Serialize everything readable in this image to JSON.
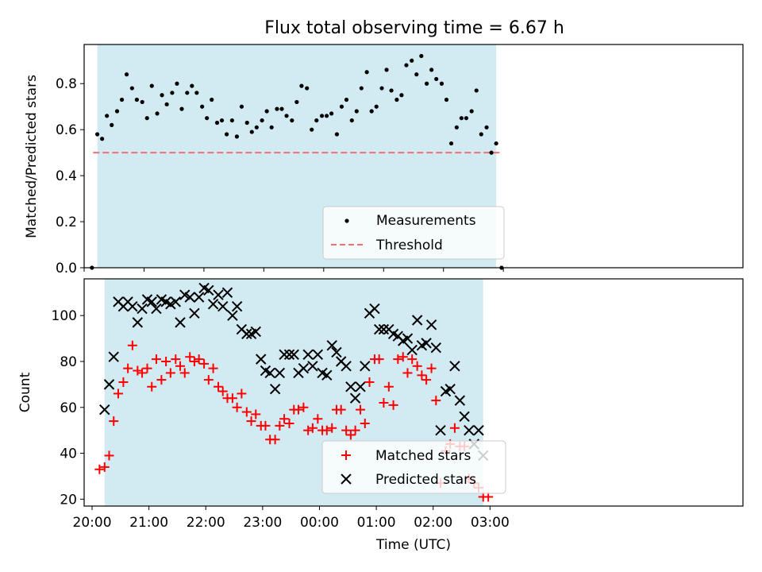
{
  "title": "Flux total observing time = 6.67 h",
  "chart_data": [
    {
      "type": "scatter",
      "ylabel": "Matched/Predicted stars",
      "xlim": [
        20.0,
        31.0
      ],
      "ylim": [
        0,
        0.97
      ],
      "yticks": [
        0,
        0.2,
        0.4,
        0.6,
        0.8
      ],
      "ytick_labels": [
        "0.0",
        "0.2",
        "0.4",
        "0.6",
        "0.8"
      ],
      "shaded_span": [
        20.22,
        26.88
      ],
      "legend_position": "lower center",
      "legend": [
        "Measurements",
        "Threshold"
      ],
      "series": [
        {
          "name": "Measurements",
          "marker": "dot",
          "color": "#000000",
          "x": [
            20.13,
            20.22,
            20.3,
            20.38,
            20.46,
            20.55,
            20.63,
            20.71,
            20.8,
            20.88,
            20.97,
            21.05,
            21.13,
            21.22,
            21.3,
            21.38,
            21.47,
            21.55,
            21.63,
            21.72,
            21.8,
            21.88,
            21.97,
            22.05,
            22.13,
            22.22,
            22.3,
            22.38,
            22.47,
            22.55,
            22.63,
            22.72,
            22.8,
            22.88,
            22.97,
            23.05,
            23.13,
            23.22,
            23.3,
            23.38,
            23.47,
            23.55,
            23.63,
            23.72,
            23.8,
            23.88,
            23.97,
            24.05,
            24.13,
            24.22,
            24.3,
            24.38,
            24.47,
            24.55,
            24.63,
            24.72,
            24.8,
            24.88,
            24.97,
            25.05,
            25.13,
            25.22,
            25.3,
            25.38,
            25.47,
            25.55,
            25.63,
            25.72,
            25.8,
            25.88,
            25.97,
            26.05,
            26.13,
            26.22,
            26.3,
            26.38,
            26.47,
            26.55,
            26.63,
            26.72,
            26.8,
            26.88,
            26.97
          ],
          "y": [
            0.0,
            0.58,
            0.56,
            0.66,
            0.62,
            0.68,
            0.73,
            0.84,
            0.78,
            0.73,
            0.72,
            0.65,
            0.79,
            0.67,
            0.75,
            0.71,
            0.76,
            0.8,
            0.69,
            0.76,
            0.79,
            0.76,
            0.7,
            0.65,
            0.73,
            0.63,
            0.64,
            0.58,
            0.64,
            0.57,
            0.7,
            0.63,
            0.59,
            0.61,
            0.64,
            0.68,
            0.61,
            0.69,
            0.69,
            0.66,
            0.64,
            0.72,
            0.79,
            0.78,
            0.6,
            0.64,
            0.66,
            0.66,
            0.67,
            0.58,
            0.7,
            0.73,
            0.64,
            0.68,
            0.78,
            0.85,
            0.68,
            0.7,
            0.78,
            0.86,
            0.77,
            0.73,
            0.75,
            0.88,
            0.9,
            0.84,
            0.92,
            0.8,
            0.86,
            0.82,
            0.8,
            0.73,
            0.54,
            0.61,
            0.65,
            0.65,
            0.68,
            0.77,
            0.58,
            0.61,
            0.5,
            0.54,
            0.0
          ]
        },
        {
          "name": "Threshold",
          "type": "hline",
          "linestyle": "dashed",
          "color": "#f07070",
          "y": 0.5,
          "x_range": [
            20.15,
            26.95
          ]
        }
      ]
    },
    {
      "type": "scatter",
      "xlabel": "Time (UTC)",
      "ylabel": "Count",
      "xlim": [
        19.86,
        31.45
      ],
      "ylim": [
        17,
        116
      ],
      "xticks": [
        20,
        21,
        22,
        23,
        24,
        25,
        26,
        27
      ],
      "xtick_labels": [
        "20:00",
        "21:00",
        "22:00",
        "23:00",
        "00:00",
        "01:00",
        "02:00",
        "03:00"
      ],
      "yticks": [
        20,
        40,
        60,
        80,
        100
      ],
      "ytick_labels": [
        "20",
        "40",
        "60",
        "80",
        "100"
      ],
      "shaded_span": [
        20.22,
        26.88
      ],
      "legend_position": "lower center",
      "legend": [
        "Matched stars",
        "Predicted stars"
      ],
      "series": [
        {
          "name": "Matched stars",
          "marker": "+",
          "color": "#ff0000",
          "x": [
            20.13,
            20.22,
            20.3,
            20.38,
            20.46,
            20.55,
            20.63,
            20.71,
            20.8,
            20.88,
            20.97,
            21.05,
            21.13,
            21.22,
            21.3,
            21.38,
            21.47,
            21.55,
            21.63,
            21.72,
            21.8,
            21.88,
            21.97,
            22.05,
            22.13,
            22.22,
            22.3,
            22.38,
            22.47,
            22.55,
            22.63,
            22.72,
            22.8,
            22.88,
            22.97,
            23.05,
            23.13,
            23.22,
            23.3,
            23.38,
            23.47,
            23.55,
            23.63,
            23.72,
            23.8,
            23.88,
            23.97,
            24.05,
            24.13,
            24.22,
            24.3,
            24.38,
            24.47,
            24.55,
            24.63,
            24.72,
            24.8,
            24.88,
            24.97,
            25.05,
            25.13,
            25.22,
            25.3,
            25.38,
            25.47,
            25.55,
            25.63,
            25.72,
            25.8,
            25.88,
            25.97,
            26.05,
            26.13,
            26.22,
            26.3,
            26.38,
            26.47,
            26.55,
            26.63,
            26.72,
            26.8,
            26.88,
            26.97
          ],
          "y": [
            33,
            34,
            39,
            54,
            66,
            71,
            77,
            87,
            76,
            75,
            77,
            69,
            81,
            72,
            80,
            75,
            81,
            78,
            75,
            82,
            80,
            81,
            79,
            72,
            77,
            69,
            67,
            64,
            64,
            60,
            66,
            58,
            54,
            57,
            52,
            52,
            46,
            46,
            52,
            55,
            53,
            59,
            59,
            60,
            50,
            51,
            55,
            50,
            50,
            51,
            59,
            59,
            50,
            48,
            50,
            59,
            53,
            71,
            81,
            81,
            62,
            69,
            61,
            81,
            82,
            75,
            81,
            78,
            74,
            72,
            77,
            63,
            27,
            41,
            44,
            51,
            43,
            43,
            29,
            27,
            25,
            21,
            21
          ]
        },
        {
          "name": "Predicted stars",
          "marker": "x",
          "color": "#000000",
          "x": [
            20.22,
            20.3,
            20.38,
            20.46,
            20.55,
            20.63,
            20.71,
            20.8,
            20.88,
            20.97,
            21.05,
            21.13,
            21.22,
            21.3,
            21.38,
            21.47,
            21.55,
            21.63,
            21.72,
            21.8,
            21.88,
            21.97,
            22.05,
            22.13,
            22.22,
            22.3,
            22.38,
            22.47,
            22.55,
            22.63,
            22.72,
            22.8,
            22.88,
            22.97,
            23.05,
            23.13,
            23.22,
            23.3,
            23.38,
            23.47,
            23.55,
            23.63,
            23.72,
            23.8,
            23.88,
            23.97,
            24.05,
            24.13,
            24.22,
            24.3,
            24.38,
            24.47,
            24.55,
            24.63,
            24.72,
            24.8,
            24.88,
            24.97,
            25.05,
            25.13,
            25.22,
            25.3,
            25.38,
            25.47,
            25.55,
            25.63,
            25.72,
            25.8,
            25.88,
            25.97,
            26.05,
            26.13,
            26.22,
            26.3,
            26.38,
            26.47,
            26.55,
            26.63,
            26.72,
            26.8,
            26.88
          ],
          "y": [
            59,
            70,
            82,
            106,
            104,
            106,
            104,
            97,
            103,
            107,
            106,
            103,
            107,
            106,
            105,
            106,
            97,
            109,
            108,
            101,
            108,
            112,
            111,
            105,
            109,
            104,
            110,
            100,
            104,
            94,
            92,
            92,
            93,
            81,
            76,
            75,
            68,
            75,
            83,
            83,
            83,
            75,
            77,
            83,
            78,
            83,
            75,
            74,
            87,
            84,
            80,
            78,
            69,
            64,
            69,
            78,
            101,
            103,
            94,
            94,
            94,
            92,
            91,
            89,
            90,
            85,
            98,
            87,
            88,
            96,
            86,
            50,
            67,
            68,
            78,
            63,
            56,
            50,
            44,
            50,
            39
          ]
        }
      ]
    }
  ]
}
